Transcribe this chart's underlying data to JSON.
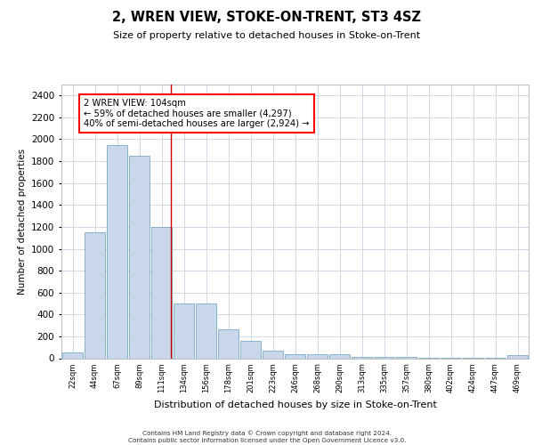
{
  "title": "2, WREN VIEW, STOKE-ON-TRENT, ST3 4SZ",
  "subtitle": "Size of property relative to detached houses in Stoke-on-Trent",
  "xlabel": "Distribution of detached houses by size in Stoke-on-Trent",
  "ylabel": "Number of detached properties",
  "categories": [
    "22sqm",
    "44sqm",
    "67sqm",
    "89sqm",
    "111sqm",
    "134sqm",
    "156sqm",
    "178sqm",
    "201sqm",
    "223sqm",
    "246sqm",
    "268sqm",
    "290sqm",
    "313sqm",
    "335sqm",
    "357sqm",
    "380sqm",
    "402sqm",
    "424sqm",
    "447sqm",
    "469sqm"
  ],
  "values": [
    50,
    1150,
    1950,
    1850,
    1200,
    500,
    500,
    265,
    155,
    70,
    40,
    40,
    35,
    10,
    15,
    10,
    5,
    5,
    5,
    5,
    25
  ],
  "bar_color": "#c8d8ea",
  "bar_edge_color": "#7aaac8",
  "grid_color": "#d0d8e8",
  "annotation_text": "2 WREN VIEW: 104sqm\n← 59% of detached houses are smaller (4,297)\n40% of semi-detached houses are larger (2,924) →",
  "vline_x": 4.42,
  "ylim": [
    0,
    2500
  ],
  "yticks": [
    0,
    200,
    400,
    600,
    800,
    1000,
    1200,
    1400,
    1600,
    1800,
    2000,
    2200,
    2400
  ],
  "footer_line1": "Contains HM Land Registry data © Crown copyright and database right 2024.",
  "footer_line2": "Contains public sector information licensed under the Open Government Licence v3.0."
}
